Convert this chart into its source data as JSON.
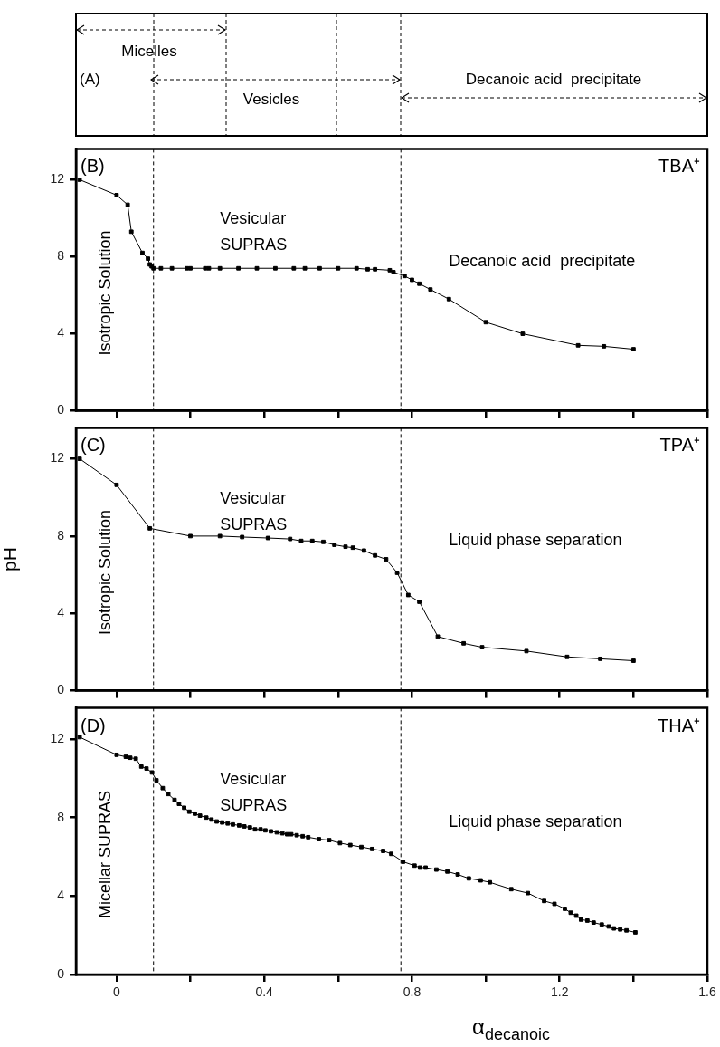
{
  "chart_data": [
    {
      "type": "other",
      "annotations": [
        "(A)",
        "Micelles",
        "Vesicles",
        "Decanoic acid  precipitate"
      ]
    },
    {
      "type": "line",
      "xlim": [
        -0.11,
        1.6
      ],
      "ylim": [
        0,
        13.6
      ],
      "tick_labels": "y",
      "marker": "square",
      "xticks": [
        0,
        {
          "value": 0.2,
          "label": null
        },
        0.4,
        {
          "value": 0.6,
          "label": null
        },
        0.8,
        {
          "value": 1.0,
          "label": null
        },
        1.2,
        {
          "value": 1.4,
          "label": null
        },
        1.6
      ],
      "yticks": [
        0,
        4,
        8,
        12
      ],
      "ref_lines": [
        {
          "axis": "x",
          "value": 0.1,
          "color": "#000000",
          "line_style": "dashed"
        },
        {
          "axis": "x",
          "value": 0.77,
          "color": "#000000",
          "line_style": "dashed"
        }
      ],
      "annotations": [
        "(B)",
        "TBA⁺",
        "Vesicular\nSUPRAS",
        "Decanoic acid  precipitate",
        "Isotropic Solution"
      ],
      "series": [
        {
          "color": "#000000",
          "x": [
            -0.1,
            0.0,
            0.03,
            0.04,
            0.07,
            0.085,
            0.09,
            0.095,
            0.1,
            0.12,
            0.15,
            0.19,
            0.2,
            0.24,
            0.25,
            0.28,
            0.33,
            0.38,
            0.43,
            0.48,
            0.51,
            0.55,
            0.6,
            0.65,
            0.68,
            0.7,
            0.74,
            0.75,
            0.78,
            0.8,
            0.82,
            0.85,
            0.9,
            1.0,
            1.1,
            1.25,
            1.32,
            1.4
          ],
          "values": [
            12.0,
            11.2,
            10.7,
            9.3,
            8.2,
            7.9,
            7.6,
            7.5,
            7.4,
            7.4,
            7.4,
            7.4,
            7.4,
            7.4,
            7.4,
            7.4,
            7.4,
            7.4,
            7.4,
            7.4,
            7.4,
            7.4,
            7.4,
            7.4,
            7.35,
            7.35,
            7.3,
            7.2,
            7.0,
            6.8,
            6.6,
            6.3,
            5.8,
            4.6,
            4.0,
            3.4,
            3.35,
            3.2
          ]
        }
      ]
    },
    {
      "type": "line",
      "xlim": [
        -0.11,
        1.6
      ],
      "ylim": [
        0,
        13.6
      ],
      "tick_labels": "y",
      "marker": "square",
      "ylabel": "pH",
      "xticks": [
        0,
        {
          "value": 0.2,
          "label": null
        },
        0.4,
        {
          "value": 0.6,
          "label": null
        },
        0.8,
        {
          "value": 1.0,
          "label": null
        },
        1.2,
        {
          "value": 1.4,
          "label": null
        },
        1.6
      ],
      "yticks": [
        0,
        4,
        8,
        12
      ],
      "ref_lines": [
        {
          "axis": "x",
          "value": 0.1,
          "color": "#000000",
          "line_style": "dashed"
        },
        {
          "axis": "x",
          "value": 0.77,
          "color": "#000000",
          "line_style": "dashed"
        }
      ],
      "annotations": [
        "(C)",
        "TPA⁺",
        "Vesicular\nSUPRAS",
        "Liquid phase separation",
        "Isotropic Solution"
      ],
      "series": [
        {
          "color": "#000000",
          "x": [
            -0.1,
            0.0,
            0.09,
            0.2,
            0.28,
            0.34,
            0.41,
            0.47,
            0.5,
            0.53,
            0.56,
            0.59,
            0.62,
            0.64,
            0.67,
            0.7,
            0.73,
            0.76,
            0.79,
            0.82,
            0.87,
            0.94,
            0.99,
            1.11,
            1.22,
            1.31,
            1.4
          ],
          "values": [
            12.0,
            10.65,
            8.4,
            8.0,
            8.0,
            7.95,
            7.9,
            7.85,
            7.75,
            7.75,
            7.7,
            7.55,
            7.45,
            7.4,
            7.25,
            7.0,
            6.8,
            6.1,
            4.95,
            4.6,
            2.8,
            2.45,
            2.25,
            2.05,
            1.75,
            1.65,
            1.55
          ]
        }
      ]
    },
    {
      "type": "line",
      "xlim": [
        -0.11,
        1.6
      ],
      "ylim": [
        0,
        13.6
      ],
      "marker": "square",
      "xlabel": "α$_{decanoic}$",
      "xticks": [
        0,
        {
          "value": 0.2,
          "label": null
        },
        0.4,
        {
          "value": 0.6,
          "label": null
        },
        0.8,
        {
          "value": 1.0,
          "label": null
        },
        1.2,
        {
          "value": 1.4,
          "label": null
        },
        1.6
      ],
      "yticks": [
        0,
        4,
        8,
        12
      ],
      "ref_lines": [
        {
          "axis": "x",
          "value": 0.1,
          "color": "#000000",
          "line_style": "dashed"
        },
        {
          "axis": "x",
          "value": 0.77,
          "color": "#000000",
          "line_style": "dashed"
        }
      ],
      "annotations": [
        "(D)",
        "THA⁺",
        "Vesicular\nSUPRAS",
        "Liquid phase separation",
        "Micellar SUPRAS"
      ],
      "series": [
        {
          "color": "#000000",
          "x": [
            -0.1,
            0.0,
            0.025,
            0.037,
            0.052,
            0.067,
            0.081,
            0.096,
            0.108,
            0.125,
            0.14,
            0.157,
            0.169,
            0.183,
            0.197,
            0.212,
            0.226,
            0.243,
            0.257,
            0.271,
            0.286,
            0.301,
            0.315,
            0.332,
            0.346,
            0.361,
            0.375,
            0.39,
            0.403,
            0.418,
            0.434,
            0.449,
            0.462,
            0.473,
            0.488,
            0.504,
            0.519,
            0.548,
            0.576,
            0.605,
            0.633,
            0.663,
            0.692,
            0.722,
            0.744,
            0.776,
            0.807,
            0.822,
            0.837,
            0.866,
            0.896,
            0.924,
            0.954,
            0.986,
            1.011,
            1.069,
            1.114,
            1.158,
            1.186,
            1.214,
            1.23,
            1.245,
            1.258,
            1.275,
            1.292,
            1.314,
            1.333,
            1.347,
            1.364,
            1.381,
            1.405
          ],
          "values": [
            12.1,
            11.2,
            11.1,
            11.05,
            11.0,
            10.6,
            10.5,
            10.3,
            9.9,
            9.5,
            9.2,
            8.9,
            8.7,
            8.5,
            8.3,
            8.2,
            8.1,
            8.0,
            7.9,
            7.8,
            7.75,
            7.7,
            7.65,
            7.6,
            7.55,
            7.5,
            7.4,
            7.4,
            7.35,
            7.3,
            7.25,
            7.2,
            7.15,
            7.15,
            7.1,
            7.05,
            7.0,
            6.9,
            6.85,
            6.7,
            6.6,
            6.5,
            6.4,
            6.3,
            6.15,
            5.75,
            5.55,
            5.45,
            5.45,
            5.35,
            5.25,
            5.1,
            4.9,
            4.8,
            4.7,
            4.35,
            4.15,
            3.75,
            3.6,
            3.35,
            3.15,
            3.0,
            2.8,
            2.75,
            2.65,
            2.55,
            2.45,
            2.35,
            2.3,
            2.25,
            2.15
          ]
        }
      ]
    }
  ]
}
